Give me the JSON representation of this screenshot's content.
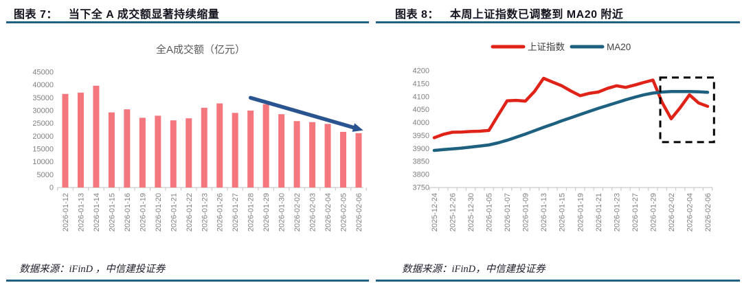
{
  "panels": [
    {
      "header_label": "图表 7：",
      "header_title": "当下全 A 成交额显著持续缩量",
      "source": "数据来源：iFinD ，中信建投证券"
    },
    {
      "header_label": "图表 8：",
      "header_title": "本周上证指数已调整到 MA20 附近",
      "source": "数据来源：iFinD，中信建投证券"
    }
  ],
  "colors": {
    "header_rule": "#1d6285",
    "bar": "#f4777e",
    "arrow": "#2a5490",
    "axis_text": "#7f7f7f",
    "axis_line": "#c9c9c9",
    "chart_title": "#595959",
    "legend_text": "#404040",
    "highlight_box": "#000000"
  },
  "chart_data": [
    {
      "type": "bar",
      "title": "全A成交额（亿元）",
      "categories": [
        "2026-01-12",
        "2026-01-13",
        "2026-01-14",
        "2026-01-15",
        "2026-01-16",
        "2026-01-19",
        "2026-01-20",
        "2026-01-21",
        "2026-01-22",
        "2026-01-23",
        "2026-01-26",
        "2026-01-27",
        "2026-01-28",
        "2026-01-29",
        "2026-01-30",
        "2026-02-02",
        "2026-02-03",
        "2026-02-04",
        "2026-02-05",
        "2026-02-06"
      ],
      "values": [
        36500,
        37000,
        39700,
        29300,
        30500,
        27200,
        28000,
        26200,
        27000,
        31100,
        32800,
        29100,
        30000,
        32500,
        28600,
        25900,
        25500,
        24800,
        21700,
        21200
      ],
      "ylim": [
        0,
        45000
      ],
      "ytick_step": 5000,
      "grid": false,
      "legend": "none",
      "annotation": {
        "type": "trend-arrow-down",
        "from": {
          "index": 12,
          "value": 35000
        },
        "to": {
          "index": 19.3,
          "value": 22300
        }
      }
    },
    {
      "type": "line",
      "categories": [
        "2025-12-24",
        "2025-12-25",
        "2025-12-26",
        "2025-12-29",
        "2025-12-30",
        "2025-12-31",
        "2026-01-05",
        "2026-01-06",
        "2026-01-07",
        "2026-01-08",
        "2026-01-09",
        "2026-01-12",
        "2026-01-13",
        "2026-01-14",
        "2026-01-15",
        "2026-01-16",
        "2026-01-19",
        "2026-01-20",
        "2026-01-21",
        "2026-01-22",
        "2026-01-23",
        "2026-01-26",
        "2026-01-27",
        "2026-01-28",
        "2026-01-29",
        "2026-01-30",
        "2026-02-02",
        "2026-02-03",
        "2026-02-04",
        "2026-02-05",
        "2026-02-06"
      ],
      "x_tick_every": 2,
      "series": [
        {
          "name": "上证指数",
          "color": "#e02318",
          "values": [
            3942,
            3955,
            3963,
            3964,
            3966,
            3967,
            3970,
            4028,
            4084,
            4086,
            4083,
            4120,
            4171,
            4156,
            4142,
            4122,
            4104,
            4113,
            4118,
            4132,
            4142,
            4136,
            4145,
            4155,
            4164,
            4078,
            4015,
            4058,
            4107,
            4076,
            4063
          ]
        },
        {
          "name": "MA20",
          "color": "#1e607f",
          "values": [
            3893,
            3896,
            3899,
            3902,
            3906,
            3910,
            3914,
            3922,
            3932,
            3944,
            3956,
            3969,
            3982,
            3994,
            4007,
            4019,
            4031,
            4043,
            4055,
            4066,
            4077,
            4088,
            4098,
            4107,
            4114,
            4118,
            4120,
            4120,
            4120,
            4119,
            4117
          ]
        }
      ],
      "ylim": [
        3750,
        4200
      ],
      "ytick_step": 50,
      "grid": false,
      "legend_position": "top",
      "annotation": {
        "type": "highlight-box",
        "from_index": 24.8,
        "to_index": 30.7,
        "top_value": 4174,
        "bottom_value": 3925
      }
    }
  ]
}
